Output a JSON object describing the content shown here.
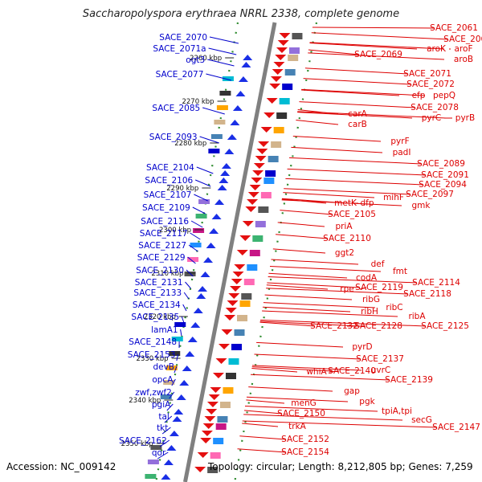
{
  "header": {
    "title": "Saccharopolyspora erythraea NRRL 2338, complete genome"
  },
  "footer": {
    "accession": "Accession: NC_009142",
    "summary": "Topology: circular; Length: 8,212,805 bp; Genes: 7,259"
  },
  "colors": {
    "left_label": "#0000cc",
    "right_label": "#dd0000",
    "ruler_dots": "#2e8b2e",
    "backbone": "#808080"
  },
  "ruler": [
    "2260 kbp",
    "2270 kbp",
    "2280 kbp",
    "2290 kbp",
    "2300 kbp",
    "2310 kbp",
    "2320 kbp",
    "2330 kbp",
    "2340 kbp",
    "2350 kbp"
  ],
  "left_labels": [
    "SACE_2070",
    "SACE_2071a",
    "ogt3",
    "SACE_2077",
    "SACE_2085",
    "SACE_2093",
    "SACE_2104",
    "SACE_2106",
    "SACE_2107",
    "SACE_2109",
    "SACE_2116",
    "SACE_2117",
    "SACE_2127",
    "SACE_2129",
    "SACE_2130",
    "SACE_2131",
    "SACE_2133",
    "SACE_2134",
    "SACE_2135",
    "lamA1",
    "SACE_2148",
    "SACE_2153",
    "devB",
    "opcA",
    "zwf,zwf2",
    "pgiA",
    "tal",
    "tkt",
    "SACE_2162",
    "qor"
  ],
  "right_labels": [
    "SACE_2061",
    "SACE_2062",
    "aroK",
    "aroF",
    "SACE_2069",
    "aroB",
    "SACE_2071",
    "SACE_2072",
    "efp",
    "pepQ",
    "SACE_2078",
    "carA",
    "pyrC",
    "pyrB",
    "carB",
    "pyrF",
    "padI",
    "SACE_2089",
    "SACE_2091",
    "SACE_2094",
    "mihF",
    "SACE_2097",
    "metK",
    "dfp",
    "gmk",
    "SACE_2105",
    "priA",
    "SACE_2110",
    "ggt2",
    "def",
    "fmt",
    "codA",
    "SACE_2114",
    "rpe",
    "SACE_2119",
    "SACE_2118",
    "ribG",
    "ribC",
    "ribH",
    "ribA",
    "SACE_2132",
    "SACE_2128",
    "SACE_2125",
    "pyrD",
    "SACE_2137",
    "uvrC",
    "whiA",
    "SACE_2140",
    "SACE_2139",
    "gap",
    "pgk",
    "menG",
    "tpiA,tpi",
    "SACE_2150",
    "secG",
    "SACE_2147",
    "trkA",
    "SACE_2152",
    "SACE_2154"
  ]
}
